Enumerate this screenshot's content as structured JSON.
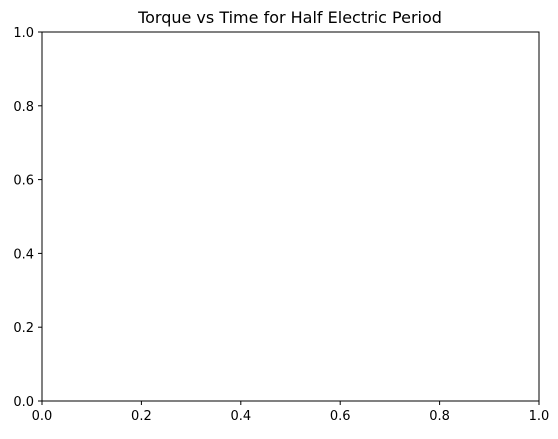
{
  "chart_data": {
    "type": "line",
    "title": "Torque vs Time for Half Electric Period",
    "xlabel": "",
    "ylabel": "",
    "xlim": [
      0,
      1
    ],
    "ylim": [
      0,
      1
    ],
    "x_ticks": [
      "0.0",
      "0.2",
      "0.4",
      "0.6",
      "0.8",
      "1.0"
    ],
    "y_ticks": [
      "0.0",
      "0.2",
      "0.4",
      "0.6",
      "0.8",
      "1.0"
    ],
    "series": [],
    "grid": false,
    "legend": "none"
  }
}
